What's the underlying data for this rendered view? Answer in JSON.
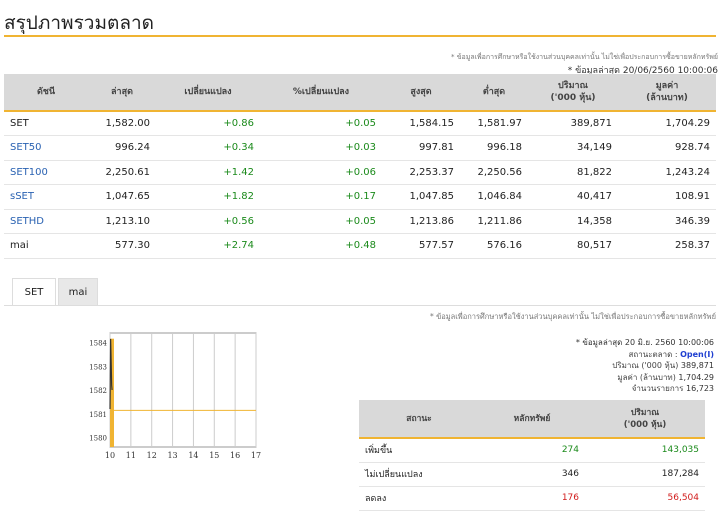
{
  "page": {
    "title": "สรุปภาพรวมตลาด",
    "disclaimer": "* ข้อมูลเพื่อการศึกษาหรือใช้งานส่วนบุคคลเท่านั้น ไม่ใช่เพื่อประกอบการซื้อขายหลักทรัพย์",
    "last_update": "* ข้อมูลล่าสุด 20/06/2560 10:00:06"
  },
  "index_table": {
    "headers": [
      "ดัชนี",
      "ล่าสุด",
      "เปลี่ยนแปลง",
      "%เปลี่ยนแปลง",
      "สูงสุด",
      "ต่ำสุด",
      "ปริมาณ\n('000 หุ้น)",
      "มูลค่า\n(ล้านบาท)"
    ],
    "rows": [
      {
        "name": "SET",
        "last": "1,582.00",
        "change": "+0.86",
        "pct": "+0.05",
        "high": "1,584.15",
        "low": "1,581.97",
        "volume": "389,871",
        "value": "1,704.29"
      },
      {
        "name": "SET50",
        "last": "996.24",
        "change": "+0.34",
        "pct": "+0.03",
        "high": "997.81",
        "low": "996.18",
        "volume": "34,149",
        "value": "928.74"
      },
      {
        "name": "SET100",
        "last": "2,250.61",
        "change": "+1.42",
        "pct": "+0.06",
        "high": "2,253.37",
        "low": "2,250.56",
        "volume": "81,822",
        "value": "1,243.24"
      },
      {
        "name": "sSET",
        "last": "1,047.65",
        "change": "+1.82",
        "pct": "+0.17",
        "high": "1,047.85",
        "low": "1,046.84",
        "volume": "40,417",
        "value": "108.91"
      },
      {
        "name": "SETHD",
        "last": "1,213.10",
        "change": "+0.56",
        "pct": "+0.05",
        "high": "1,213.86",
        "low": "1,211.86",
        "volume": "14,358",
        "value": "346.39"
      },
      {
        "name": "mai",
        "last": "577.30",
        "change": "+2.74",
        "pct": "+0.48",
        "high": "577.57",
        "low": "576.16",
        "volume": "80,517",
        "value": "258.37"
      }
    ]
  },
  "tabs": {
    "set": "SET",
    "mai": "mai"
  },
  "chart_data": {
    "type": "line",
    "x_ticks": [
      "10",
      "11",
      "12",
      "13",
      "14",
      "15",
      "16",
      "17"
    ],
    "y_ticks": [
      "1580",
      "1581",
      "1582",
      "1583",
      "1584"
    ],
    "xlim": [
      10,
      17
    ],
    "ylim": [
      1579.6,
      1584.4
    ],
    "reference_line": 1581.14,
    "x": [
      10.0,
      10.03,
      10.06,
      10.08,
      10.1
    ],
    "y": [
      1581.2,
      1584.15,
      1583.0,
      1582.2,
      1582.0
    ],
    "volume_bar_height_fraction": 0.95,
    "colors": {
      "line": "#333333",
      "reference": "#f0b432",
      "volume": "#f0b432"
    }
  },
  "summary": {
    "disclaimer": "* ข้อมูลเพื่อการศึกษาหรือใช้งานส่วนบุคคลเท่านั้น ไม่ใช่เพื่อประกอบการซื้อขายหลักทรัพย์",
    "last_update": "* ข้อมูลล่าสุด 20 มิ.ย. 2560 10:00:06",
    "market_status_label": "สถานะตลาด :",
    "market_status": "Open(I)",
    "volume_label": "ปริมาณ ('000 หุ้น)",
    "volume": "389,871",
    "value_label": "มูลค่า (ล้านบาท)",
    "value": "1,704.29",
    "deals_label": "จำนวนรายการ",
    "deals": "16,723"
  },
  "breadth_table": {
    "headers": [
      "สถานะ",
      "หลักทรัพย์",
      "ปริมาณ\n('000 หุ้น)"
    ],
    "rows": [
      {
        "status": "เพิ่มขึ้น",
        "count": "274",
        "volume": "143,035"
      },
      {
        "status": "ไม่เปลี่ยนแปลง",
        "count": "346",
        "volume": "187,284"
      },
      {
        "status": "ลดลง",
        "count": "176",
        "volume": "56,504"
      }
    ]
  },
  "colors": {
    "accent": "#f0b432",
    "up": "#1b8a1b",
    "down": "#d11b1b",
    "link": "#2a62b2",
    "status": "#1f3fd1"
  }
}
